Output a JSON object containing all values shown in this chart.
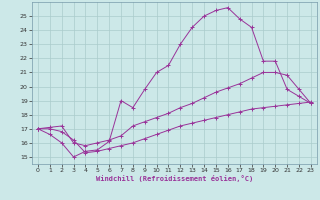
{
  "xlabel": "Windchill (Refroidissement éolien,°C)",
  "bg_color": "#cce8e8",
  "grid_color": "#aacccc",
  "line_color": "#993399",
  "spine_color": "#7799aa",
  "xlim": [
    -0.5,
    23.5
  ],
  "ylim": [
    14.5,
    26.0
  ],
  "xticks": [
    0,
    1,
    2,
    3,
    4,
    5,
    6,
    7,
    8,
    9,
    10,
    11,
    12,
    13,
    14,
    15,
    16,
    17,
    18,
    19,
    20,
    21,
    22,
    23
  ],
  "yticks": [
    15,
    16,
    17,
    18,
    19,
    20,
    21,
    22,
    23,
    24,
    25
  ],
  "line1_x": [
    0,
    1,
    2,
    3,
    4,
    5,
    6,
    7,
    8,
    9,
    10,
    11,
    12,
    13,
    14,
    15,
    16,
    17,
    18,
    19,
    20,
    21,
    22,
    23
  ],
  "line1_y": [
    17.0,
    16.6,
    16.0,
    15.0,
    15.4,
    15.5,
    16.1,
    19.0,
    18.5,
    19.8,
    21.0,
    21.5,
    23.0,
    24.2,
    25.0,
    25.4,
    25.6,
    24.8,
    24.2,
    21.8,
    21.8,
    19.8,
    19.3,
    18.8
  ],
  "line2_x": [
    0,
    1,
    2,
    3,
    4,
    5,
    6,
    7,
    8,
    9,
    10,
    11,
    12,
    13,
    14,
    15,
    16,
    17,
    18,
    19,
    20,
    21,
    22,
    23
  ],
  "line2_y": [
    17.0,
    17.1,
    17.2,
    16.0,
    15.8,
    16.0,
    16.2,
    16.5,
    17.2,
    17.5,
    17.8,
    18.1,
    18.5,
    18.8,
    19.2,
    19.6,
    19.9,
    20.2,
    20.6,
    21.0,
    21.0,
    20.8,
    19.8,
    18.8
  ],
  "line3_x": [
    0,
    1,
    2,
    3,
    4,
    5,
    6,
    7,
    8,
    9,
    10,
    11,
    12,
    13,
    14,
    15,
    16,
    17,
    18,
    19,
    20,
    21,
    22,
    23
  ],
  "line3_y": [
    17.0,
    17.0,
    16.8,
    16.2,
    15.3,
    15.4,
    15.6,
    15.8,
    16.0,
    16.3,
    16.6,
    16.9,
    17.2,
    17.4,
    17.6,
    17.8,
    18.0,
    18.2,
    18.4,
    18.5,
    18.6,
    18.7,
    18.8,
    18.9
  ]
}
